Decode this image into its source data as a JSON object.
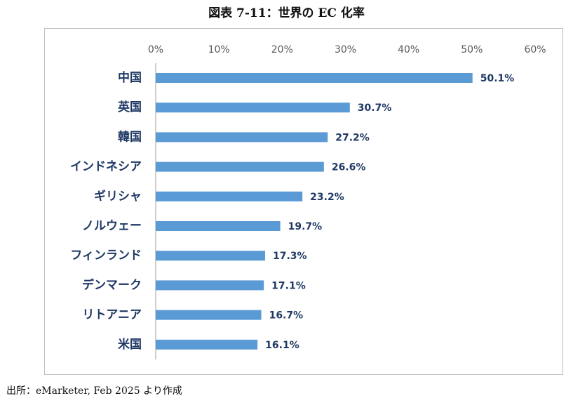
{
  "figure": {
    "title": "図表 7-11：世界の EC 化率",
    "source": "出所：eMarketer, Feb 2025 より作成"
  },
  "chart_data": {
    "type": "bar",
    "orientation": "horizontal",
    "title": "",
    "xlabel": "",
    "ylabel": "",
    "categories": [
      "中国",
      "英国",
      "韓国",
      "インドネシア",
      "ギリシャ",
      "ノルウェー",
      "フィンランド",
      "デンマーク",
      "リトアニア",
      "米国"
    ],
    "values": [
      50.1,
      30.7,
      27.2,
      26.6,
      23.2,
      19.7,
      17.3,
      17.1,
      16.7,
      16.1
    ],
    "data_labels": [
      "50.1%",
      "30.7%",
      "27.2%",
      "26.6%",
      "23.2%",
      "19.7%",
      "17.3%",
      "17.1%",
      "16.7%",
      "16.1%"
    ],
    "xlim": [
      0,
      60
    ],
    "ticks": [
      0,
      10,
      20,
      30,
      40,
      50,
      60
    ],
    "tick_labels": [
      "0%",
      "10%",
      "20%",
      "30%",
      "40%",
      "50%",
      "60%"
    ],
    "axis_position": "top",
    "grid": false,
    "legend": "none",
    "colors": {
      "bar": "#5b9bd5",
      "category_text": "#1f3864",
      "data_label_text": "#1f3864",
      "tick_text": "#595959",
      "axis_line": "#bfbfbf"
    }
  }
}
